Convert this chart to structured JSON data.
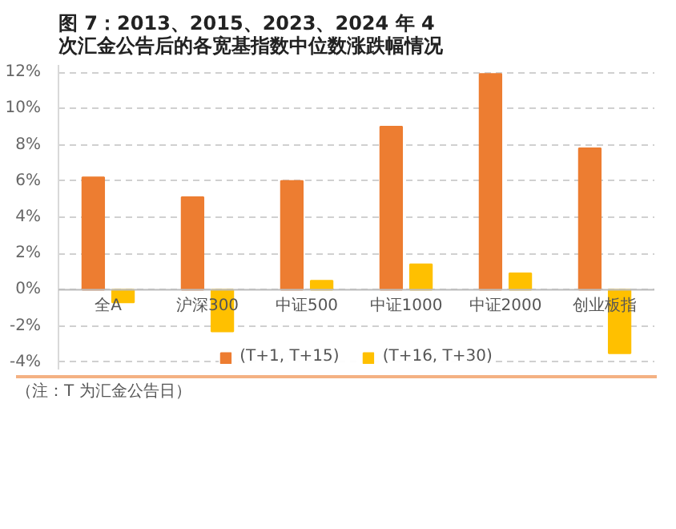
{
  "chart_data": {
    "type": "bar",
    "title": "图 7：2013、2015、2023、2024 年 4 次汇金公告后的各宽基指数中位数涨跌幅情况",
    "categories": [
      "全A",
      "沪深300",
      "中证500",
      "中证1000",
      "中证2000",
      "创业板指"
    ],
    "series": [
      {
        "name": "(T+1, T+15)",
        "color": "#ed7d31",
        "values": [
          6.2,
          5.1,
          6.0,
          9.0,
          11.9,
          7.8
        ]
      },
      {
        "name": "(T+16, T+30)",
        "color": "#ffc000",
        "values": [
          -0.7,
          -2.3,
          0.5,
          1.4,
          0.9,
          -3.5
        ]
      }
    ],
    "ylim": [
      -4.4,
      12.4
    ],
    "yticks": [
      {
        "value": -4,
        "label": "-4%"
      },
      {
        "value": -2,
        "label": "-2%"
      },
      {
        "value": 0,
        "label": "0%"
      },
      {
        "value": 2,
        "label": "2%"
      },
      {
        "value": 4,
        "label": "4%"
      },
      {
        "value": 6,
        "label": "6%"
      },
      {
        "value": 8,
        "label": "8%"
      },
      {
        "value": 10,
        "label": "10%"
      },
      {
        "value": 12,
        "label": "12%"
      }
    ],
    "grid": "y",
    "legend": "bottom",
    "annotations": [
      "（注：T 为汇金公告日）"
    ]
  }
}
